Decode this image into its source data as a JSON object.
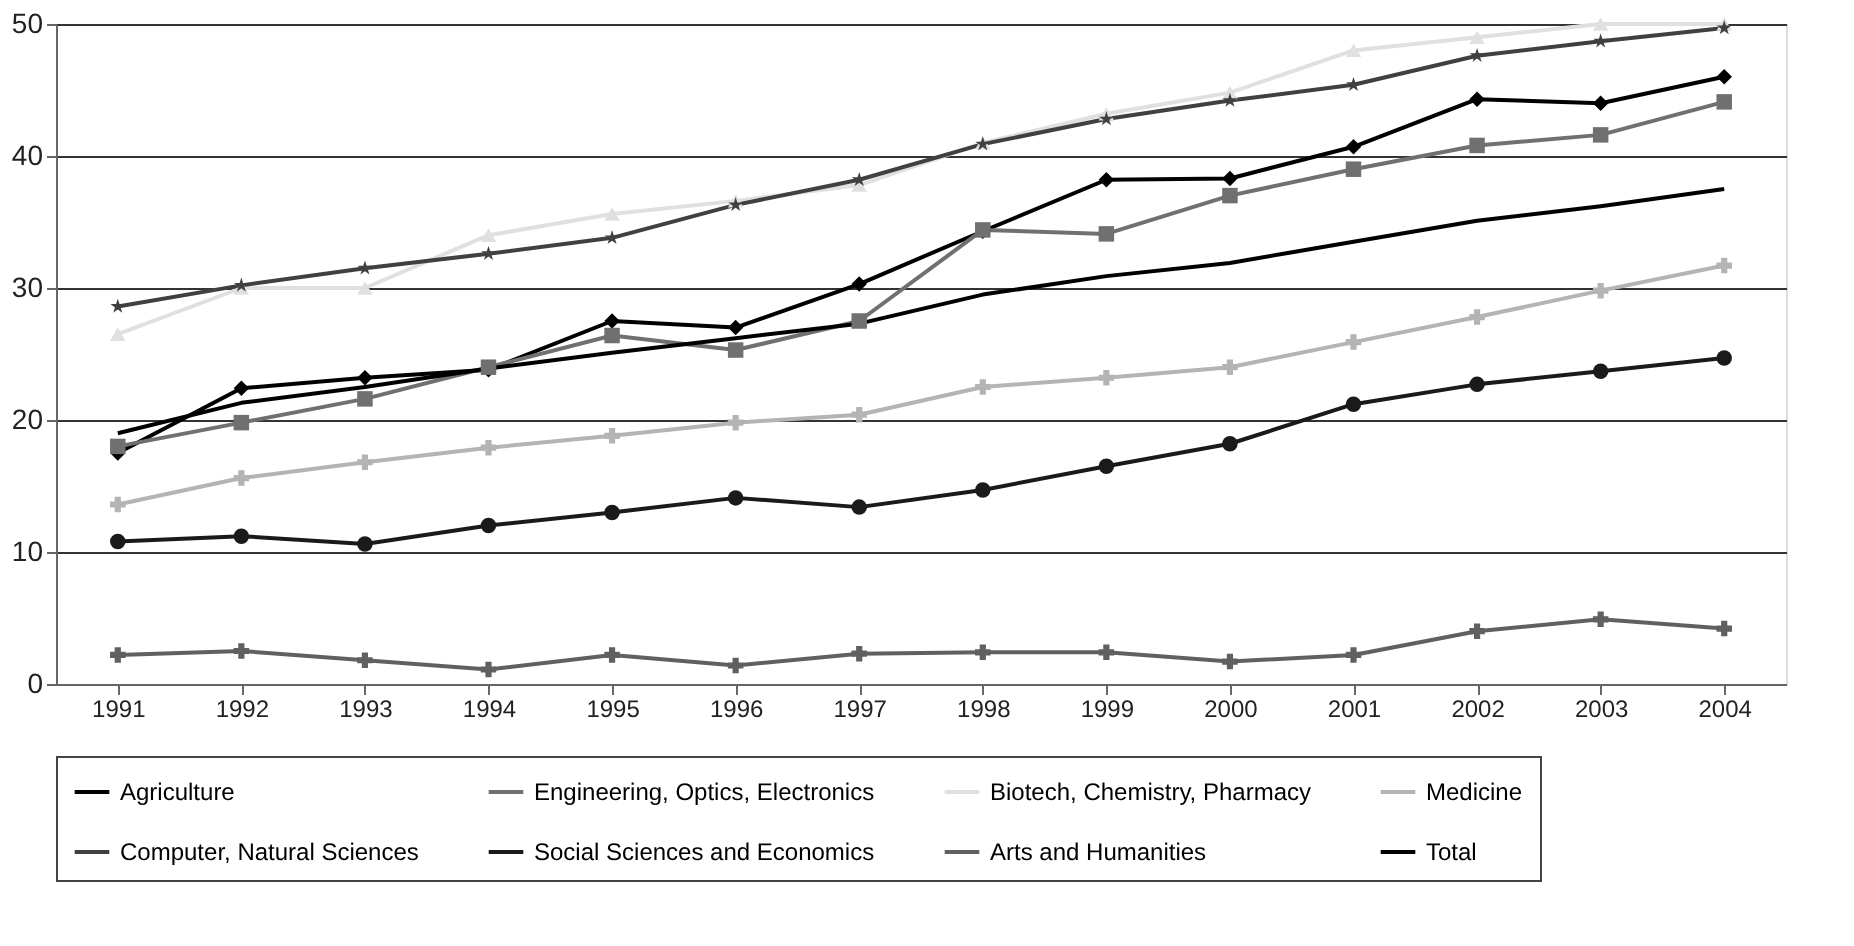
{
  "chart_data": {
    "type": "line",
    "categories": [
      "1991",
      "1992",
      "1993",
      "1994",
      "1995",
      "1996",
      "1997",
      "1998",
      "1999",
      "2000",
      "2001",
      "2002",
      "2003",
      "2004"
    ],
    "series": [
      {
        "name": "Agriculture",
        "color": "#000000",
        "marker": "diamond",
        "values": [
          17.5,
          22.4,
          23.2,
          23.8,
          27.5,
          27.0,
          30.3,
          34.3,
          38.2,
          38.3,
          40.7,
          44.3,
          44.0,
          46.0
        ]
      },
      {
        "name": "Engineering, Optics, Electronics",
        "color": "#707070",
        "marker": "square",
        "values": [
          18.0,
          19.8,
          21.6,
          24.0,
          26.4,
          25.3,
          27.5,
          34.4,
          34.1,
          37.0,
          39.0,
          40.8,
          41.6,
          44.1
        ]
      },
      {
        "name": "Biotech, Chemistry, Pharmacy",
        "color": "#e0e0e0",
        "marker": "triangle",
        "values": [
          26.5,
          30.0,
          30.0,
          34.0,
          35.6,
          36.6,
          37.8,
          41.0,
          43.2,
          44.8,
          48.0,
          49.0,
          50.0,
          50.0
        ]
      },
      {
        "name": "Medicine",
        "color": "#b4b4b4",
        "marker": "cross",
        "values": [
          13.6,
          15.6,
          16.8,
          17.9,
          18.8,
          19.8,
          20.4,
          22.5,
          23.2,
          24.0,
          25.9,
          27.8,
          29.8,
          31.7
        ]
      },
      {
        "name": "Computer, Natural Sciences",
        "color": "#404040",
        "marker": "star",
        "values": [
          28.6,
          30.2,
          31.5,
          32.6,
          33.8,
          36.3,
          38.2,
          40.9,
          42.8,
          44.2,
          45.4,
          47.6,
          48.7,
          49.7
        ]
      },
      {
        "name": "Social Sciences and Economics",
        "color": "#1a1a1a",
        "marker": "circle",
        "values": [
          10.8,
          11.2,
          10.6,
          12.0,
          13.0,
          14.1,
          13.4,
          14.7,
          16.5,
          18.2,
          21.2,
          22.7,
          23.7,
          24.7
        ]
      },
      {
        "name": "Arts and Humanities",
        "color": "#606060",
        "marker": "cross",
        "values": [
          2.2,
          2.5,
          1.8,
          1.1,
          2.2,
          1.4,
          2.3,
          2.4,
          2.4,
          1.7,
          2.2,
          4.0,
          4.9,
          4.2
        ]
      },
      {
        "name": "Total",
        "color": "#000000",
        "marker": "none",
        "values": [
          19.0,
          21.3,
          22.5,
          23.9,
          25.1,
          26.2,
          27.3,
          29.5,
          30.9,
          31.9,
          33.5,
          35.1,
          36.2,
          37.5
        ]
      }
    ],
    "ylim": [
      0,
      50
    ],
    "yticks": [
      0,
      10,
      20,
      30,
      40,
      50
    ],
    "grid": "y",
    "legend": "bottom",
    "line_style": "solid"
  }
}
